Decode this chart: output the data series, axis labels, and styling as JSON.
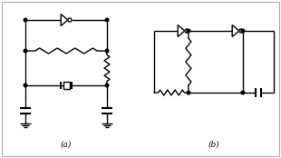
{
  "background_color": "#ffffff",
  "border_color": "#aaaaaa",
  "line_color": "#000000",
  "line_width": 1.0,
  "label_a": "(a)",
  "label_b": "(b)",
  "label_fontsize": 6.5,
  "figsize": [
    3.1,
    1.74
  ],
  "dpi": 100
}
